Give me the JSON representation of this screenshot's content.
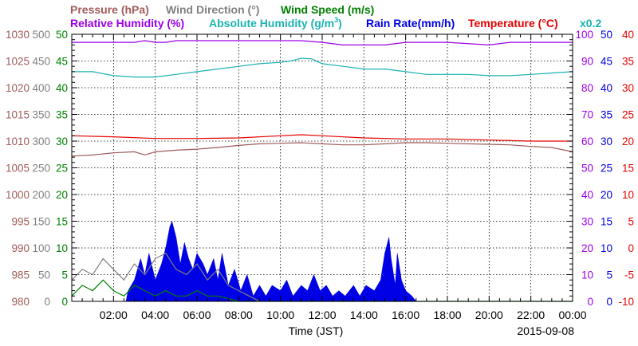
{
  "legend": {
    "pressure": "Pressure (hPa)",
    "wind_direction": "Wind Direction (°)",
    "wind_speed": "Wind Speed (m/s)",
    "rel_humidity": "Relative Humidity (%)",
    "abs_humidity_base": "Absolute Humidity (g/m",
    "abs_humidity_sup": "3",
    "abs_humidity_end": ")",
    "rain_rate": "Rain Rate(mm/h)",
    "temperature": "Temperature (°C)",
    "abs_scale_note": "x0.2"
  },
  "colors": {
    "pressure": "#a05a5a",
    "wind_direction": "#808080",
    "wind_speed": "#008000",
    "rel_humidity": "#9b00e8",
    "abs_humidity": "#1ab2b2",
    "rain_rate": "#0000e6",
    "temperature": "#e60000"
  },
  "chart_data": {
    "type": "line",
    "xlabel": "Time (JST)",
    "date_label": "2015-09-08",
    "x_range_hours": [
      0,
      24
    ],
    "x_ticks": [
      "02:00",
      "04:00",
      "06:00",
      "08:00",
      "10:00",
      "12:00",
      "14:00",
      "16:00",
      "18:00",
      "20:00",
      "22:00",
      "00:00"
    ],
    "grid": true,
    "axes": {
      "pressure": {
        "ticks": [
          "1030",
          "1025",
          "1020",
          "1015",
          "1010",
          "1005",
          "1000",
          "995",
          "990",
          "985",
          "980"
        ],
        "range": [
          980,
          1030
        ]
      },
      "wind_direction": {
        "ticks": [
          "500",
          "450",
          "400",
          "350",
          "300",
          "250",
          "200",
          "150",
          "100",
          "50",
          "0"
        ],
        "range": [
          0,
          500
        ]
      },
      "wind_speed": {
        "ticks": [
          "50",
          "45",
          "40",
          "35",
          "30",
          "25",
          "20",
          "15",
          "10",
          "5",
          "0"
        ],
        "range": [
          0,
          50
        ]
      },
      "rel_humidity": {
        "ticks": [
          "100",
          "90",
          "80",
          "70",
          "60",
          "50",
          "40",
          "30",
          "20",
          "10",
          "0"
        ],
        "range": [
          0,
          100
        ]
      },
      "rain_rate": {
        "ticks": [
          "50",
          "45",
          "40",
          "35",
          "30",
          "25",
          "20",
          "15",
          "10",
          "5",
          "0"
        ],
        "range": [
          0,
          50
        ]
      },
      "temperature": {
        "ticks": [
          "40",
          "35",
          "30",
          "25",
          "20",
          "15",
          "10",
          "5",
          "0",
          "-5",
          "-10"
        ],
        "range": [
          -10,
          40
        ]
      }
    },
    "series": [
      {
        "name": "Relative Humidity (%)",
        "axis": "rel_humidity",
        "kind": "line",
        "points": [
          [
            0,
            97
          ],
          [
            1,
            97
          ],
          [
            2,
            97
          ],
          [
            3,
            97
          ],
          [
            3.5,
            97.6
          ],
          [
            4,
            97
          ],
          [
            4.5,
            97
          ],
          [
            5,
            97.6
          ],
          [
            6,
            97.6
          ],
          [
            8,
            97.6
          ],
          [
            10,
            97.6
          ],
          [
            11,
            97.6
          ],
          [
            12,
            97
          ],
          [
            13,
            96
          ],
          [
            14,
            96
          ],
          [
            15,
            96
          ],
          [
            16,
            97
          ],
          [
            18,
            97
          ],
          [
            20,
            96
          ],
          [
            21,
            97
          ],
          [
            24,
            97
          ]
        ]
      },
      {
        "name": "Absolute Humidity",
        "axis": "rel_humidity",
        "kind": "line",
        "points": [
          [
            0,
            86
          ],
          [
            1,
            86
          ],
          [
            2,
            84.5
          ],
          [
            3,
            84
          ],
          [
            4,
            84
          ],
          [
            5,
            85
          ],
          [
            6,
            86
          ],
          [
            7,
            87
          ],
          [
            8,
            88
          ],
          [
            9,
            89
          ],
          [
            10,
            89.5
          ],
          [
            10.5,
            90
          ],
          [
            11,
            91
          ],
          [
            11.5,
            90.8
          ],
          [
            12,
            89
          ],
          [
            13,
            88
          ],
          [
            14,
            87
          ],
          [
            15,
            87
          ],
          [
            16,
            86
          ],
          [
            17,
            85
          ],
          [
            18,
            85
          ],
          [
            19,
            85
          ],
          [
            20,
            84.5
          ],
          [
            21,
            84.5
          ],
          [
            22,
            85
          ],
          [
            23,
            85.5
          ],
          [
            24,
            86
          ]
        ]
      },
      {
        "name": "Temperature (°C)",
        "axis": "temperature",
        "kind": "line",
        "points": [
          [
            0,
            21
          ],
          [
            2,
            20.8
          ],
          [
            4,
            20.5
          ],
          [
            6,
            20.5
          ],
          [
            8,
            20.6
          ],
          [
            10,
            21
          ],
          [
            11,
            21.2
          ],
          [
            12,
            21
          ],
          [
            14,
            20.6
          ],
          [
            16,
            20.4
          ],
          [
            18,
            20.4
          ],
          [
            20,
            20.2
          ],
          [
            22,
            20
          ],
          [
            24,
            20
          ]
        ]
      },
      {
        "name": "Pressure (hPa)",
        "axis": "pressure",
        "kind": "line",
        "points": [
          [
            0,
            1007.2
          ],
          [
            1,
            1007.4
          ],
          [
            2,
            1007.8
          ],
          [
            3,
            1008
          ],
          [
            3.5,
            1007.4
          ],
          [
            4,
            1008
          ],
          [
            5,
            1008.3
          ],
          [
            6,
            1008.5
          ],
          [
            7,
            1008.8
          ],
          [
            8,
            1009.2
          ],
          [
            9,
            1009.5
          ],
          [
            10,
            1009.6
          ],
          [
            11,
            1009.7
          ],
          [
            12,
            1009.5
          ],
          [
            13,
            1009.3
          ],
          [
            14,
            1009.3
          ],
          [
            15,
            1009.5
          ],
          [
            16,
            1009.7
          ],
          [
            17,
            1009.7
          ],
          [
            18,
            1009.6
          ],
          [
            19,
            1009.5
          ],
          [
            20,
            1009.4
          ],
          [
            21,
            1009.3
          ],
          [
            22,
            1009
          ],
          [
            23,
            1008.8
          ],
          [
            24,
            1008
          ]
        ]
      },
      {
        "name": "Rain Rate(mm/h)",
        "axis": "rain_rate",
        "kind": "area",
        "points": [
          [
            2.6,
            0
          ],
          [
            2.7,
            2
          ],
          [
            3.0,
            4
          ],
          [
            3.3,
            8
          ],
          [
            3.5,
            5
          ],
          [
            3.7,
            9
          ],
          [
            4.0,
            4
          ],
          [
            4.3,
            7
          ],
          [
            4.5,
            10
          ],
          [
            4.7,
            14
          ],
          [
            4.8,
            15
          ],
          [
            5.0,
            12
          ],
          [
            5.2,
            7
          ],
          [
            5.4,
            11
          ],
          [
            5.6,
            8
          ],
          [
            5.8,
            6
          ],
          [
            6.0,
            9
          ],
          [
            6.3,
            7
          ],
          [
            6.5,
            5
          ],
          [
            6.8,
            8
          ],
          [
            7.0,
            4
          ],
          [
            7.2,
            9
          ],
          [
            7.5,
            3
          ],
          [
            7.8,
            6
          ],
          [
            8.1,
            2
          ],
          [
            8.4,
            5
          ],
          [
            8.7,
            1
          ],
          [
            9.0,
            3
          ],
          [
            9.3,
            1
          ],
          [
            9.6,
            3
          ],
          [
            10.0,
            2
          ],
          [
            10.3,
            4
          ],
          [
            10.6,
            1
          ],
          [
            11.0,
            3
          ],
          [
            11.3,
            2
          ],
          [
            11.6,
            5
          ],
          [
            11.9,
            2
          ],
          [
            12.2,
            3
          ],
          [
            12.5,
            1
          ],
          [
            12.8,
            2
          ],
          [
            13.1,
            1
          ],
          [
            13.5,
            3
          ],
          [
            13.8,
            1
          ],
          [
            14.1,
            3
          ],
          [
            14.5,
            2
          ],
          [
            14.8,
            4
          ],
          [
            15.0,
            9
          ],
          [
            15.2,
            12
          ],
          [
            15.3,
            8
          ],
          [
            15.5,
            3
          ],
          [
            15.6,
            9
          ],
          [
            15.8,
            4
          ],
          [
            16.0,
            2
          ],
          [
            16.3,
            1
          ],
          [
            16.5,
            0
          ]
        ]
      },
      {
        "name": "Wind Speed (m/s)",
        "axis": "wind_speed",
        "kind": "line",
        "points": [
          [
            0,
            1
          ],
          [
            0.5,
            3
          ],
          [
            1,
            2
          ],
          [
            1.5,
            4
          ],
          [
            2,
            2
          ],
          [
            2.5,
            1
          ],
          [
            3,
            3
          ],
          [
            3.5,
            2
          ],
          [
            4,
            1
          ],
          [
            4.5,
            2
          ],
          [
            5,
            1
          ],
          [
            5.5,
            1
          ],
          [
            6,
            2
          ],
          [
            6.5,
            1
          ],
          [
            7,
            1
          ],
          [
            8,
            0
          ],
          [
            12,
            0
          ],
          [
            16,
            0
          ],
          [
            20,
            0
          ],
          [
            24,
            0
          ]
        ]
      },
      {
        "name": "Wind Direction (°)",
        "axis": "wind_direction",
        "kind": "line",
        "points": [
          [
            0,
            40
          ],
          [
            0.5,
            60
          ],
          [
            1,
            50
          ],
          [
            1.5,
            80
          ],
          [
            2,
            60
          ],
          [
            2.5,
            40
          ],
          [
            3,
            70
          ],
          [
            3.5,
            50
          ],
          [
            4,
            80
          ],
          [
            4.5,
            90
          ],
          [
            5,
            60
          ],
          [
            5.5,
            50
          ],
          [
            6,
            70
          ],
          [
            6.5,
            40
          ],
          [
            7,
            60
          ],
          [
            7.5,
            30
          ],
          [
            8,
            20
          ],
          [
            8.5,
            10
          ],
          [
            9,
            0
          ]
        ]
      }
    ]
  }
}
